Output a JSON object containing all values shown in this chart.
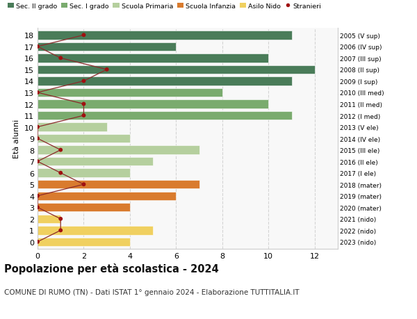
{
  "ages": [
    18,
    17,
    16,
    15,
    14,
    13,
    12,
    11,
    10,
    9,
    8,
    7,
    6,
    5,
    4,
    3,
    2,
    1,
    0
  ],
  "right_labels": [
    "2005 (V sup)",
    "2006 (IV sup)",
    "2007 (III sup)",
    "2008 (II sup)",
    "2009 (I sup)",
    "2010 (III med)",
    "2011 (II med)",
    "2012 (I med)",
    "2013 (V ele)",
    "2014 (IV ele)",
    "2015 (III ele)",
    "2016 (II ele)",
    "2017 (I ele)",
    "2018 (mater)",
    "2019 (mater)",
    "2020 (mater)",
    "2021 (nido)",
    "2022 (nido)",
    "2023 (nido)"
  ],
  "bar_values": [
    11,
    6,
    10,
    12,
    11,
    8,
    10,
    11,
    3,
    4,
    7,
    5,
    4,
    7,
    6,
    4,
    1,
    5,
    4
  ],
  "stranieri_values": [
    2,
    0,
    1,
    3,
    2,
    0,
    2,
    2,
    0,
    0,
    1,
    0,
    1,
    2,
    0,
    0,
    1,
    1,
    0
  ],
  "bar_colors": [
    "#4a7c59",
    "#4a7c59",
    "#4a7c59",
    "#4a7c59",
    "#4a7c59",
    "#7aab6e",
    "#7aab6e",
    "#7aab6e",
    "#b5cf9e",
    "#b5cf9e",
    "#b5cf9e",
    "#b5cf9e",
    "#b5cf9e",
    "#d97b2e",
    "#d97b2e",
    "#d97b2e",
    "#f0d060",
    "#f0d060",
    "#f0d060"
  ],
  "legend_labels": [
    "Sec. II grado",
    "Sec. I grado",
    "Scuola Primaria",
    "Scuola Infanzia",
    "Asilo Nido",
    "Stranieri"
  ],
  "legend_colors": [
    "#4a7c59",
    "#7aab6e",
    "#b5cf9e",
    "#d97b2e",
    "#f0d060",
    "#a01010"
  ],
  "title": "Popolazione per età scolastica - 2024",
  "subtitle": "COMUNE DI RUMO (TN) - Dati ISTAT 1° gennaio 2024 - Elaborazione TUTTITALIA.IT",
  "ylabel": "Età alunni",
  "xlim": [
    0,
    13
  ],
  "xticks": [
    0,
    2,
    4,
    6,
    8,
    10,
    12
  ],
  "stranieri_color": "#a01010",
  "line_color": "#8b2a2a",
  "bg_color": "#ffffff",
  "plot_bg_color": "#f8f8f8"
}
